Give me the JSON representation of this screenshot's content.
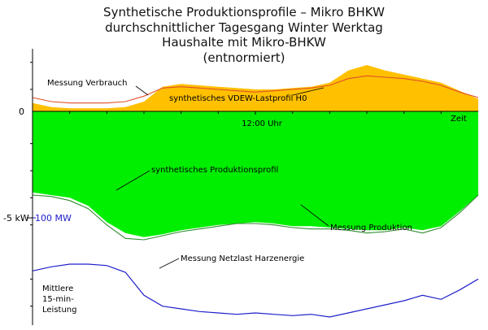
{
  "title_lines": [
    "Synthetische Produktionsprofile – Mikro BHKW",
    "durchschnittlicher Tagesgang Winter Werktag",
    "Haushalte mit Mikro-BHKW",
    "(entnormiert)"
  ],
  "chart_data": {
    "type": "area",
    "axes": {
      "y_ticks": [
        "0",
        "-5 kW"
      ],
      "y_secondary_tick": "100 MW",
      "x_tick": "12:00 Uhr",
      "x_label": "Zeit",
      "y_label_lines": [
        "Mittlere",
        "15-min-",
        "Leistung"
      ]
    },
    "x_range": [
      0,
      24
    ],
    "y_range": [
      -7.7,
      2.5
    ],
    "colors": {
      "vdew_area": "#ffc000",
      "verbrauch_line": "#e0502a",
      "production_area": "#00ee00",
      "production_line": "#2e8b2e",
      "netzlast_line": "#2020cc",
      "axis": "#000000",
      "secondary_axis_label": "#2020cc"
    },
    "annotations": {
      "verbrauch": "Messung Verbrauch",
      "vdew": "synthetisches VDEW-Lastprofil H0",
      "synthetic_production": "synthetisches Produktionsprofil",
      "measured_production": "Messung Produktion",
      "netzlast": "Messung Netzlast Harzenergie"
    },
    "series": [
      {
        "name": "synthetisches VDEW-Lastprofil H0",
        "unit": "kW",
        "x": [
          0,
          1,
          2,
          3,
          4,
          5,
          6,
          7,
          8,
          9,
          10,
          11,
          12,
          13,
          14,
          15,
          16,
          17,
          18,
          19,
          20,
          21,
          22,
          23,
          24
        ],
        "y": [
          0.5,
          0.35,
          0.3,
          0.3,
          0.3,
          0.35,
          0.55,
          1.1,
          1.2,
          1.15,
          1.1,
          1.05,
          1.0,
          1.0,
          1.05,
          1.1,
          1.25,
          1.7,
          1.9,
          1.7,
          1.55,
          1.4,
          1.25,
          0.95,
          0.65
        ]
      },
      {
        "name": "Messung Verbrauch",
        "unit": "kW",
        "x": [
          0,
          1,
          2,
          3,
          4,
          5,
          6,
          7,
          8,
          9,
          10,
          11,
          12,
          13,
          14,
          15,
          16,
          17,
          18,
          19,
          20,
          21,
          22,
          23,
          24
        ],
        "y": [
          0.7,
          0.55,
          0.5,
          0.5,
          0.5,
          0.55,
          0.75,
          1.05,
          1.1,
          1.05,
          1.0,
          0.95,
          0.9,
          0.95,
          1.0,
          1.05,
          1.15,
          1.4,
          1.5,
          1.45,
          1.4,
          1.3,
          1.15,
          0.9,
          0.7
        ]
      },
      {
        "name": "synthetisches Produktionsprofil",
        "unit": "kW",
        "x": [
          0,
          1,
          2,
          3,
          4,
          5,
          6,
          7,
          8,
          9,
          10,
          11,
          12,
          13,
          14,
          15,
          16,
          17,
          18,
          19,
          20,
          21,
          22,
          23,
          24
        ],
        "y": [
          -2.8,
          -2.9,
          -3.0,
          -3.3,
          -3.9,
          -4.3,
          -4.45,
          -4.35,
          -4.2,
          -4.1,
          -4.0,
          -3.95,
          -3.9,
          -3.95,
          -4.05,
          -4.05,
          -4.1,
          -4.15,
          -4.2,
          -4.2,
          -4.1,
          -4.2,
          -4.05,
          -3.5,
          -2.9
        ]
      },
      {
        "name": "Messung Produktion",
        "unit": "kW",
        "x": [
          0,
          1,
          2,
          3,
          4,
          5,
          6,
          7,
          8,
          9,
          10,
          11,
          12,
          13,
          14,
          15,
          16,
          17,
          18,
          19,
          20,
          21,
          22,
          23,
          24
        ],
        "y": [
          -2.9,
          -2.95,
          -3.1,
          -3.4,
          -4.0,
          -4.5,
          -4.55,
          -4.4,
          -4.25,
          -4.15,
          -4.05,
          -3.95,
          -3.95,
          -4.0,
          -4.1,
          -4.15,
          -4.15,
          -4.2,
          -4.3,
          -4.25,
          -4.15,
          -4.3,
          -4.1,
          -3.55,
          -2.9
        ]
      },
      {
        "name": "Messung Netzlast Harzenergie",
        "unit": "MW",
        "x": [
          0,
          1,
          2,
          3,
          4,
          5,
          6,
          7,
          8,
          9,
          10,
          11,
          12,
          13,
          14,
          15,
          16,
          17,
          18,
          19,
          20,
          21,
          22,
          23,
          24
        ],
        "y": [
          -5.7,
          -5.55,
          -5.45,
          -5.45,
          -5.5,
          -5.75,
          -6.6,
          -7.0,
          -7.1,
          -7.2,
          -7.25,
          -7.3,
          -7.25,
          -7.3,
          -7.35,
          -7.3,
          -7.4,
          -7.25,
          -7.1,
          -6.95,
          -6.8,
          -6.6,
          -6.75,
          -6.4,
          -6.0
        ]
      }
    ]
  }
}
